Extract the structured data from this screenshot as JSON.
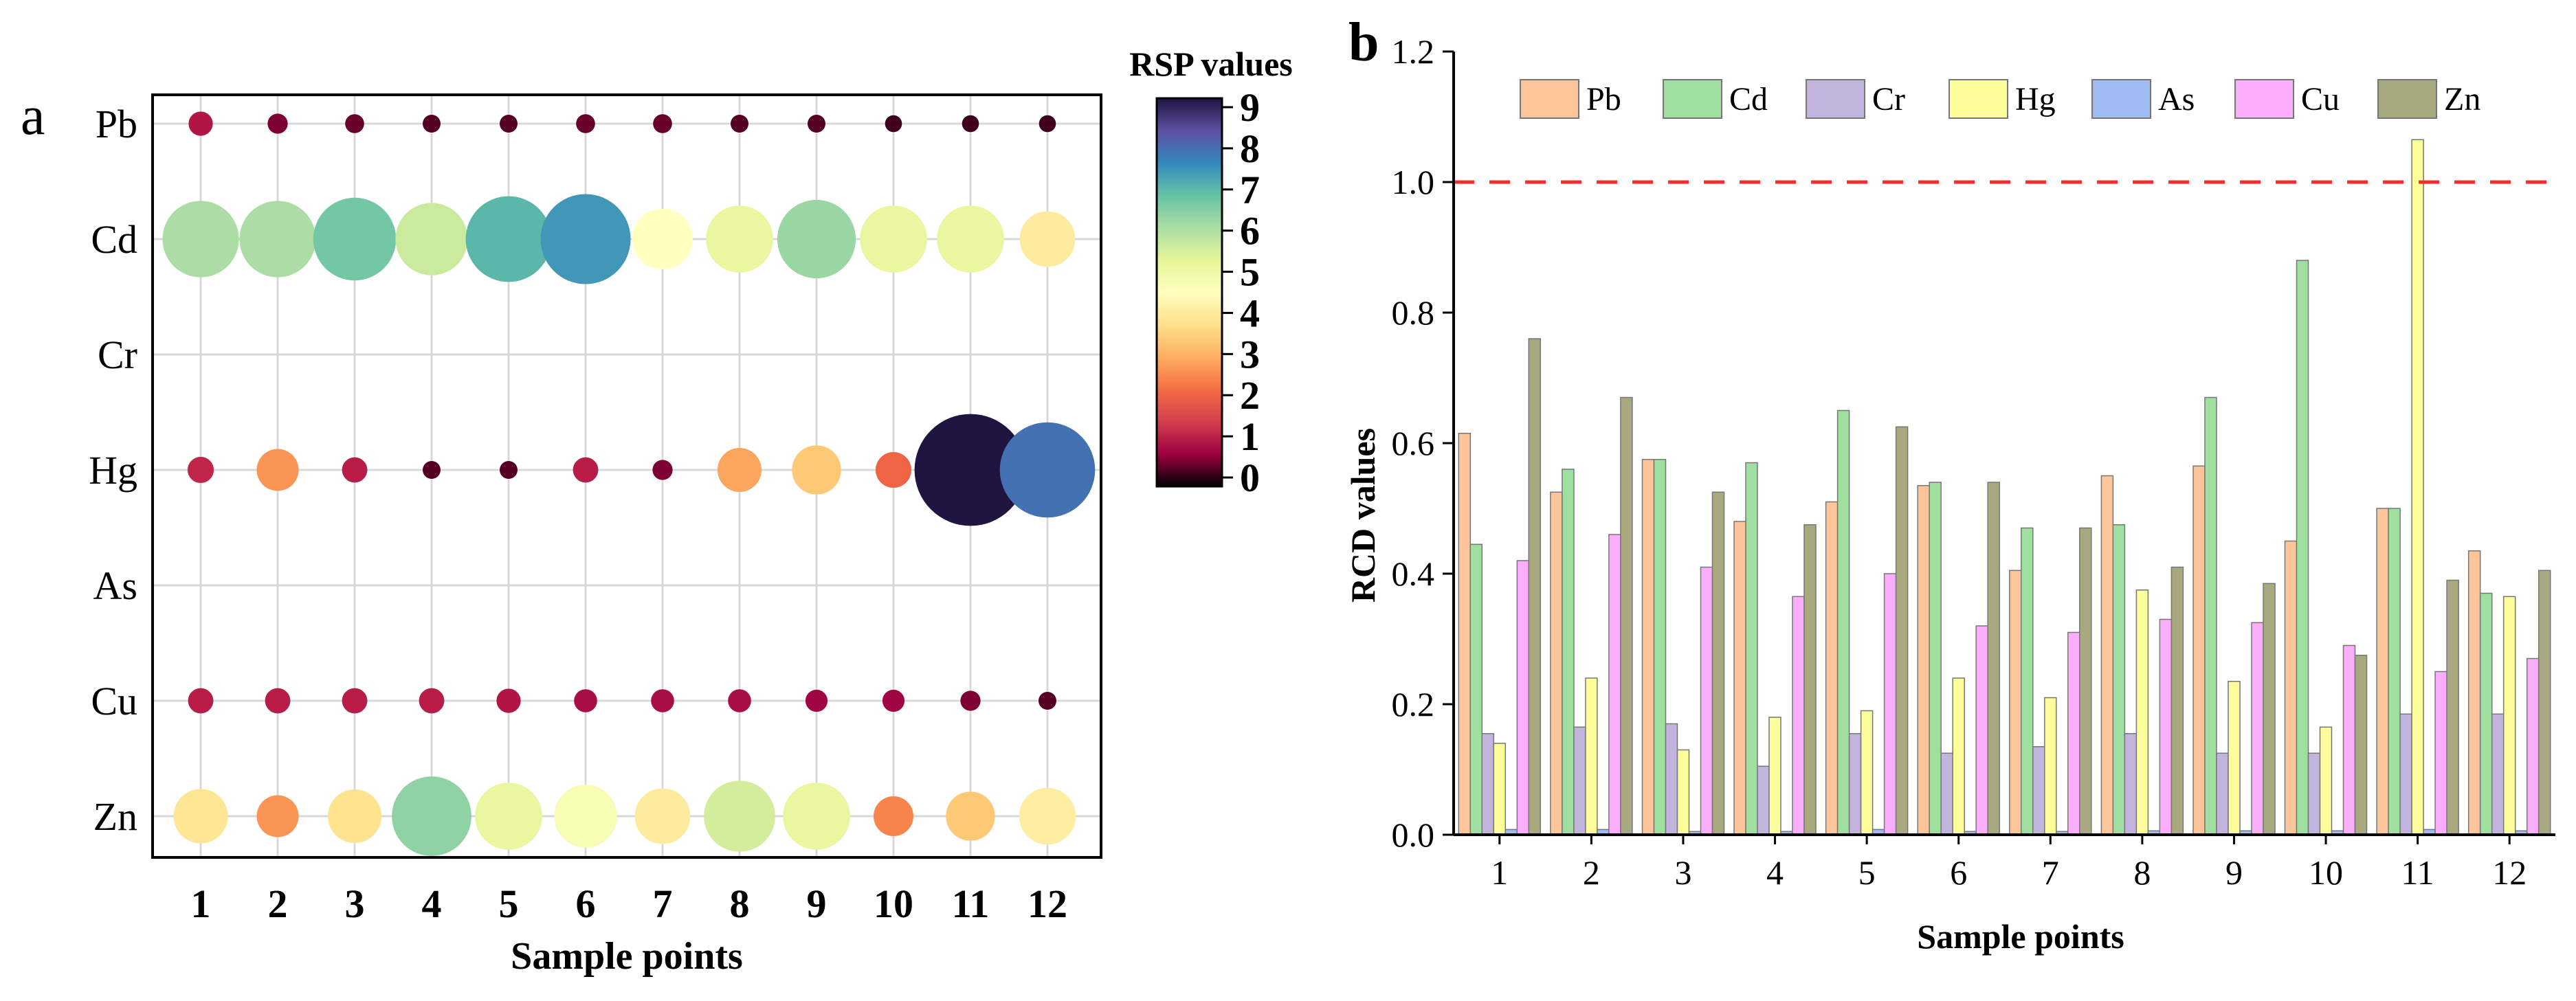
{
  "panels": {
    "a_label": "a",
    "b_label": "b"
  },
  "chart_data": [
    {
      "type": "bubble",
      "panel": "a",
      "title": "",
      "xlabel": "Sample points",
      "ylabel": "",
      "x": [
        "1",
        "2",
        "3",
        "4",
        "5",
        "6",
        "7",
        "8",
        "9",
        "10",
        "11",
        "12"
      ],
      "y": [
        "Pb",
        "Cd",
        "Cr",
        "Hg",
        "As",
        "Cu",
        "Zn"
      ],
      "grid": true,
      "series": [
        {
          "name": "Pb",
          "values": [
            1.0,
            0.6,
            0.5,
            0.4,
            0.4,
            0.5,
            0.5,
            0.4,
            0.4,
            0.3,
            0.3,
            0.3
          ]
        },
        {
          "name": "Cd",
          "values": [
            6.0,
            6.0,
            6.6,
            5.6,
            6.9,
            7.3,
            4.5,
            5.1,
            6.2,
            5.1,
            5.1,
            4.0
          ]
        },
        {
          "name": "Cr",
          "values": [
            0,
            0,
            0,
            0,
            0,
            0,
            0,
            0,
            0,
            0,
            0,
            0
          ]
        },
        {
          "name": "Hg",
          "values": [
            1.2,
            2.7,
            1.1,
            0.4,
            0.4,
            1.1,
            0.6,
            2.9,
            3.4,
            2.1,
            9.4,
            7.8
          ]
        },
        {
          "name": "As",
          "values": [
            0,
            0,
            0,
            0,
            0,
            0,
            0,
            0,
            0,
            0,
            0,
            0
          ]
        },
        {
          "name": "Cu",
          "values": [
            1.1,
            1.1,
            1.1,
            1.1,
            1.0,
            0.9,
            0.9,
            0.9,
            0.8,
            0.8,
            0.6,
            0.4
          ]
        },
        {
          "name": "Zn",
          "values": [
            3.9,
            2.7,
            3.8,
            6.3,
            5.1,
            4.7,
            4.0,
            5.5,
            5.1,
            2.5,
            3.4,
            4.1
          ]
        }
      ],
      "colorbar": {
        "title": "RSP values",
        "min": 0,
        "max": 9,
        "ticks": [
          "0",
          "1",
          "2",
          "3",
          "4",
          "5",
          "6",
          "7",
          "8",
          "9"
        ],
        "colors": [
          "#000004",
          "#9e0142",
          "#d53e4f",
          "#f46d43",
          "#fdae61",
          "#fee08b",
          "#ffffbf",
          "#e6f598",
          "#abdda4",
          "#66c2a5",
          "#3288bd",
          "#5e4fa2",
          "#1f1540"
        ]
      }
    },
    {
      "type": "bar",
      "panel": "b",
      "title": "",
      "xlabel": "Sample points",
      "ylabel": "RCD values",
      "categories": [
        "1",
        "2",
        "3",
        "4",
        "5",
        "6",
        "7",
        "8",
        "9",
        "10",
        "11",
        "12"
      ],
      "ylim": [
        0,
        1.2
      ],
      "yticks": [
        "0.0",
        "0.2",
        "0.4",
        "0.6",
        "0.8",
        "1.0",
        "1.2"
      ],
      "reference_line": {
        "y": 1.0,
        "color": "#ff2a2a",
        "style": "dashed"
      },
      "legend": "top",
      "series": [
        {
          "name": "Pb",
          "color": "#fcc59a",
          "values": [
            0.615,
            0.525,
            0.575,
            0.48,
            0.51,
            0.535,
            0.405,
            0.55,
            0.565,
            0.45,
            0.5,
            0.435
          ]
        },
        {
          "name": "Cd",
          "color": "#9fdf9f",
          "values": [
            0.445,
            0.56,
            0.575,
            0.57,
            0.65,
            0.54,
            0.47,
            0.475,
            0.67,
            0.88,
            0.5,
            0.37
          ]
        },
        {
          "name": "Cr",
          "color": "#c3b4dd",
          "values": [
            0.155,
            0.165,
            0.17,
            0.105,
            0.155,
            0.125,
            0.135,
            0.155,
            0.125,
            0.125,
            0.185,
            0.185
          ]
        },
        {
          "name": "Hg",
          "color": "#fdfd9c",
          "values": [
            0.14,
            0.24,
            0.13,
            0.18,
            0.19,
            0.24,
            0.21,
            0.375,
            0.235,
            0.165,
            1.065,
            0.365
          ]
        },
        {
          "name": "As",
          "color": "#9fbbf2",
          "values": [
            0.008,
            0.008,
            0.005,
            0.005,
            0.008,
            0.005,
            0.005,
            0.006,
            0.006,
            0.006,
            0.008,
            0.006
          ]
        },
        {
          "name": "Cu",
          "color": "#fbaefb",
          "values": [
            0.42,
            0.46,
            0.41,
            0.365,
            0.4,
            0.32,
            0.31,
            0.33,
            0.325,
            0.29,
            0.25,
            0.27
          ]
        },
        {
          "name": "Zn",
          "color": "#a8a97f",
          "values": [
            0.76,
            0.67,
            0.525,
            0.475,
            0.625,
            0.54,
            0.47,
            0.41,
            0.385,
            0.275,
            0.39,
            0.405
          ]
        }
      ]
    }
  ]
}
